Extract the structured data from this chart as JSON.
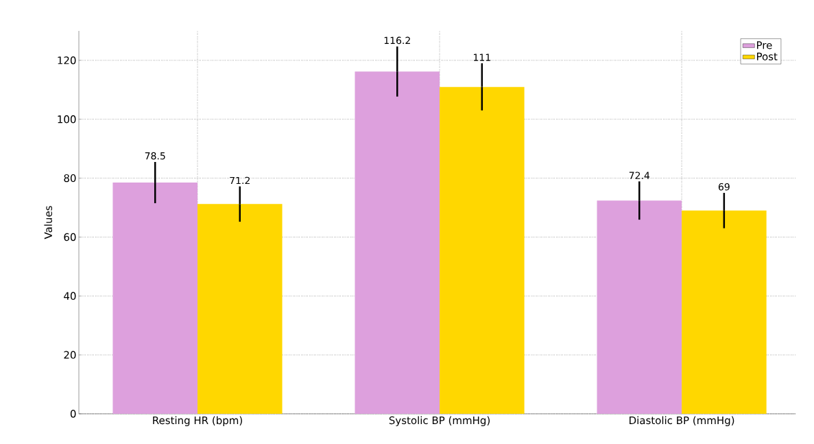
{
  "chart_data": {
    "type": "bar",
    "ylabel": "Values",
    "categories": [
      "Resting HR (bpm)",
      "Systolic BP (mmHg)",
      "Diastolic BP (mmHg)"
    ],
    "series": [
      {
        "name": "Pre",
        "color": "#dda0dd",
        "values": [
          78.5,
          116.2,
          72.4
        ],
        "errors": [
          7,
          8.5,
          6.5
        ]
      },
      {
        "name": "Post",
        "color": "#ffd700",
        "values": [
          71.2,
          111,
          69
        ],
        "errors": [
          6,
          8,
          6
        ]
      }
    ],
    "ylim": [
      0,
      130
    ],
    "yticks": [
      0,
      20,
      40,
      60,
      80,
      100,
      120
    ],
    "grid": true,
    "legend": "top right",
    "data_labels": true
  }
}
